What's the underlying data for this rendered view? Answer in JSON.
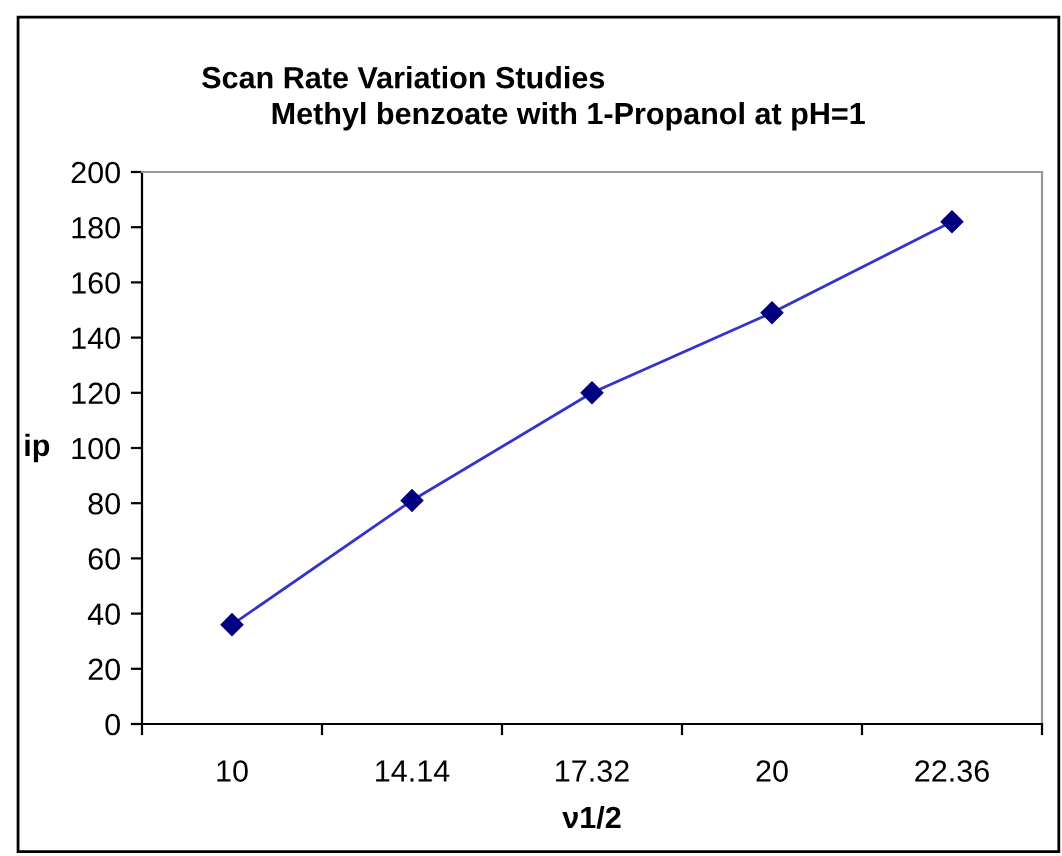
{
  "chart_data": {
    "type": "line",
    "title": "Scan Rate Variation Studies",
    "subtitle": "Methyl benzoate with 1-Propanol at pH=1",
    "xlabel": "ν1/2",
    "ylabel": "ip",
    "categories": [
      "10",
      "14.14",
      "17.32",
      "20",
      "22.36"
    ],
    "series": [
      {
        "color": "#000080",
        "values": [
          36,
          81,
          120,
          149,
          182
        ]
      }
    ],
    "ylim": [
      0,
      200
    ],
    "yticks": [
      0,
      20,
      40,
      60,
      80,
      100,
      120,
      140,
      160,
      180,
      200
    ],
    "grid": false,
    "legend": false,
    "marker": "diamond",
    "line_style": "solid"
  }
}
